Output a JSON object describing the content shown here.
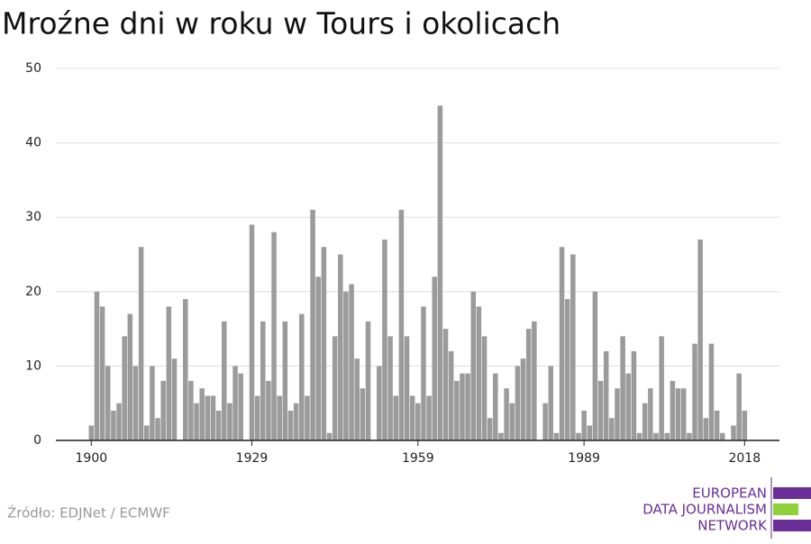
{
  "chart_data": {
    "type": "bar",
    "title": "Mroźne dni w roku w Tours i okolicach",
    "x": [
      1900,
      1901,
      1902,
      1903,
      1904,
      1905,
      1906,
      1907,
      1908,
      1909,
      1910,
      1911,
      1912,
      1913,
      1914,
      1915,
      1916,
      1917,
      1918,
      1919,
      1920,
      1921,
      1922,
      1923,
      1924,
      1925,
      1926,
      1927,
      1928,
      1929,
      1930,
      1931,
      1932,
      1933,
      1934,
      1935,
      1936,
      1937,
      1938,
      1939,
      1940,
      1941,
      1942,
      1943,
      1944,
      1945,
      1946,
      1947,
      1948,
      1949,
      1950,
      1951,
      1952,
      1953,
      1954,
      1955,
      1956,
      1957,
      1958,
      1959,
      1960,
      1961,
      1962,
      1963,
      1964,
      1965,
      1966,
      1967,
      1968,
      1969,
      1970,
      1971,
      1972,
      1973,
      1974,
      1975,
      1976,
      1977,
      1978,
      1979,
      1980,
      1981,
      1982,
      1983,
      1984,
      1985,
      1986,
      1987,
      1988,
      1989,
      1990,
      1991,
      1992,
      1993,
      1994,
      1995,
      1996,
      1997,
      1998,
      1999,
      2000,
      2001,
      2002,
      2003,
      2004,
      2005,
      2006,
      2007,
      2008,
      2009,
      2010,
      2011,
      2012,
      2013,
      2014,
      2015,
      2016,
      2017,
      2018
    ],
    "values": [
      2,
      20,
      18,
      10,
      4,
      5,
      14,
      17,
      10,
      26,
      2,
      10,
      3,
      8,
      18,
      11,
      0,
      19,
      8,
      5,
      7,
      6,
      6,
      4,
      16,
      5,
      10,
      9,
      0,
      29,
      6,
      16,
      8,
      28,
      6,
      16,
      4,
      5,
      17,
      6,
      31,
      22,
      26,
      1,
      14,
      25,
      20,
      21,
      11,
      7,
      16,
      0,
      10,
      27,
      14,
      6,
      31,
      14,
      6,
      5,
      18,
      6,
      22,
      45,
      15,
      12,
      8,
      9,
      9,
      20,
      18,
      14,
      3,
      9,
      1,
      7,
      5,
      10,
      11,
      15,
      16,
      0,
      5,
      10,
      1,
      26,
      19,
      25,
      1,
      4,
      2,
      20,
      8,
      12,
      3,
      7,
      14,
      9,
      12,
      1,
      5,
      7,
      1,
      14,
      1,
      8,
      7,
      7,
      1,
      13,
      27,
      3,
      13,
      4,
      1,
      0,
      2,
      9,
      4
    ],
    "color": "#9b9b9b",
    "xlim": [
      1893.6,
      2024.3
    ],
    "xticks": [
      1900,
      1929,
      1959,
      1989,
      2018
    ],
    "ylim": [
      0,
      50
    ],
    "yticks": [
      0,
      10,
      20,
      30,
      40,
      50
    ],
    "grid": true,
    "source": "Źródło: EDJNet / ECMWF"
  },
  "logo": {
    "lines": [
      "EUROPEAN",
      "DATA JOURNALISM",
      "NETWORK"
    ]
  }
}
